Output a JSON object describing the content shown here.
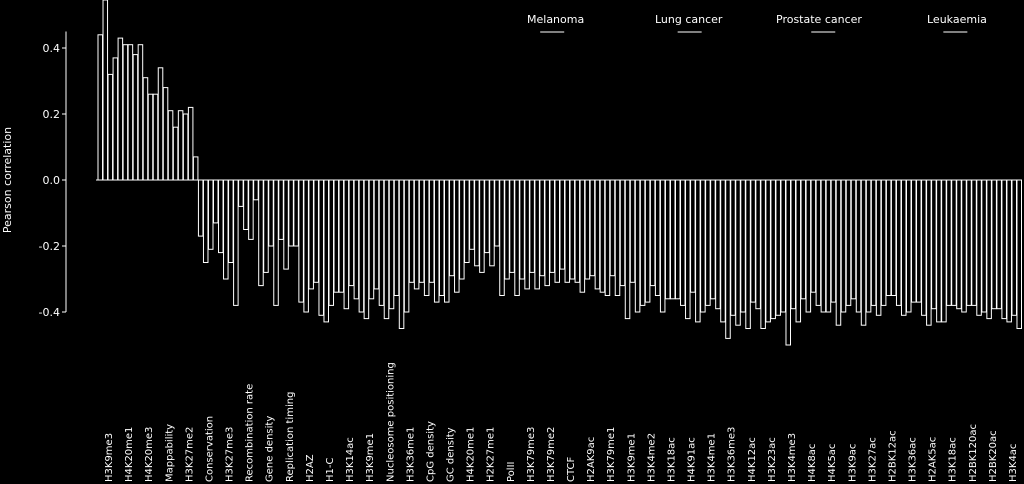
{
  "chart_data": {
    "type": "bar",
    "ylabel": "Pearson correlation",
    "ylim": [
      -0.4,
      0.5
    ],
    "yticks": [
      0.4,
      0.2,
      0.0,
      -0.2,
      -0.4
    ],
    "ytick_labels": [
      "0.4",
      "0.2",
      "0.0",
      "-0.2",
      "-0.4"
    ],
    "legend_position": "top-right",
    "series": [
      {
        "name": "Melanoma"
      },
      {
        "name": "Lung cancer"
      },
      {
        "name": "Prostate cancer"
      },
      {
        "name": "Leukaemia"
      }
    ],
    "categories": [
      "H3K9me3",
      "H4K20me1",
      "H4K20me3",
      "Mappability",
      "H3K27me2",
      "Conservation",
      "H3K27me3",
      "Recombination rate",
      "Gene density",
      "Replication timing",
      "H2AZ",
      "H1-C",
      "H3K14ac",
      "H3K9me1",
      "Nucleosome positioning",
      "H3K36me1",
      "CpG density",
      "GC density",
      "H4K20me1",
      "H2K27me1",
      "PolII",
      "H3K79me3",
      "H3K79me2",
      "CTCF",
      "H2AK9ac",
      "H3K79me1",
      "H3K9me1",
      "H3K4me2",
      "H3K18ac",
      "H4K91ac",
      "H3K4me1",
      "H3K36me3",
      "H4K12ac",
      "H3K23ac",
      "H3K4me3",
      "H4K8ac",
      "H4K5ac",
      "H3K9ac",
      "H3K27ac",
      "H2BK12ac",
      "H3K36ac",
      "H2AK5ac",
      "H3K18ac",
      "H2BK120ac",
      "H2BK20ac",
      "H3K4ac"
    ],
    "values": [
      [
        0.44,
        0.43,
        0.41,
        0.34,
        0.21,
        -0.17,
        -0.22,
        -0.08,
        -0.32,
        -0.18,
        -0.37,
        -0.41,
        -0.34,
        -0.4,
        -0.38,
        -0.45,
        -0.31,
        -0.35,
        -0.3,
        -0.28,
        -0.35,
        -0.3,
        -0.29,
        -0.27,
        -0.34,
        -0.34,
        -0.32,
        -0.38,
        -0.4,
        -0.38,
        -0.4,
        -0.43,
        -0.4,
        -0.45,
        -0.4,
        -0.36,
        -0.4,
        -0.4,
        -0.44,
        -0.38,
        -0.41,
        -0.41,
        -0.43,
        -0.4,
        -0.4,
        -0.42
      ],
      [
        0.55,
        0.41,
        0.31,
        0.28,
        0.2,
        -0.25,
        -0.3,
        -0.15,
        -0.28,
        -0.27,
        -0.4,
        -0.43,
        -0.39,
        -0.42,
        -0.42,
        -0.4,
        -0.35,
        -0.37,
        -0.25,
        -0.22,
        -0.3,
        -0.33,
        -0.32,
        -0.31,
        -0.3,
        -0.35,
        -0.42,
        -0.37,
        -0.36,
        -0.42,
        -0.38,
        -0.48,
        -0.45,
        -0.43,
        -0.5,
        -0.4,
        -0.4,
        -0.38,
        -0.4,
        -0.35,
        -0.4,
        -0.44,
        -0.38,
        -0.38,
        -0.42,
        -0.43
      ],
      [
        0.32,
        0.41,
        0.26,
        0.21,
        0.22,
        -0.21,
        -0.25,
        -0.18,
        -0.2,
        -0.2,
        -0.33,
        -0.38,
        -0.32,
        -0.36,
        -0.39,
        -0.31,
        -0.31,
        -0.29,
        -0.21,
        -0.26,
        -0.28,
        -0.28,
        -0.28,
        -0.3,
        -0.29,
        -0.29,
        -0.31,
        -0.32,
        -0.36,
        -0.34,
        -0.36,
        -0.41,
        -0.37,
        -0.42,
        -0.39,
        -0.34,
        -0.37,
        -0.36,
        -0.38,
        -0.35,
        -0.37,
        -0.39,
        -0.38,
        -0.38,
        -0.39,
        -0.41
      ],
      [
        0.37,
        0.38,
        0.26,
        0.16,
        0.07,
        -0.13,
        -0.38,
        -0.06,
        -0.38,
        -0.2,
        -0.31,
        -0.34,
        -0.36,
        -0.33,
        -0.35,
        -0.33,
        -0.37,
        -0.34,
        -0.26,
        -0.2,
        -0.35,
        -0.33,
        -0.31,
        -0.31,
        -0.33,
        -0.35,
        -0.4,
        -0.35,
        -0.36,
        -0.43,
        -0.39,
        -0.44,
        -0.39,
        -0.41,
        -0.43,
        -0.38,
        -0.44,
        -0.4,
        -0.41,
        -0.38,
        -0.37,
        -0.43,
        -0.39,
        -0.41,
        -0.39,
        -0.45
      ]
    ]
  }
}
